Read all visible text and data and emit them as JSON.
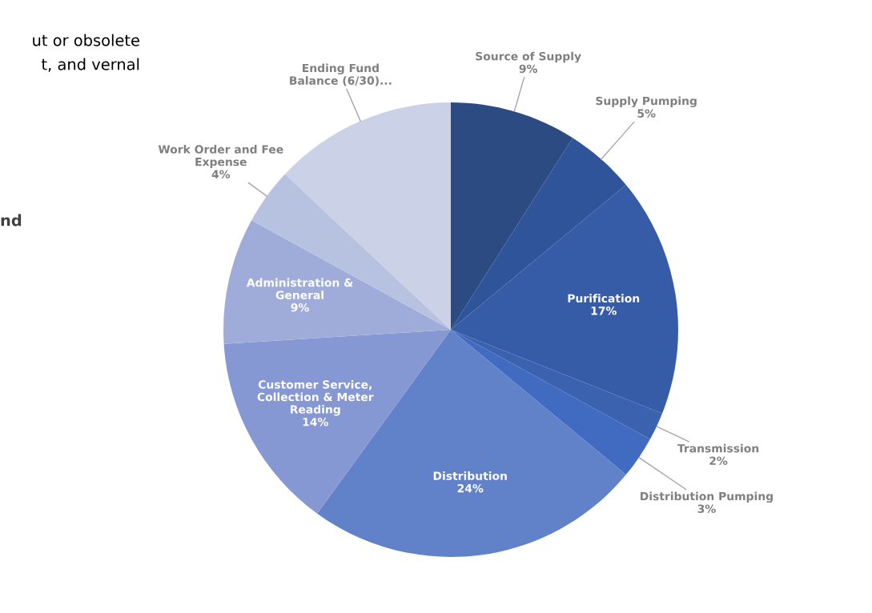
{
  "chart_data": {
    "type": "pie",
    "categories": [
      "Source of Supply",
      "Supply Pumping",
      "Purification",
      "Transmission",
      "Distribution Pumping",
      "Distribution",
      "Customer Service,\nCollection & Meter\nReading",
      "Administration &\nGeneral",
      "Work Order and Fee\nExpense",
      "Ending Fund\nBalance (6/30)..."
    ],
    "values": [
      9,
      5,
      17,
      2,
      3,
      24,
      14,
      9,
      4,
      13
    ],
    "value_labels": [
      "9%",
      "5%",
      "17%",
      "2%",
      "3%",
      "24%",
      "14%",
      "9%",
      "4%",
      null
    ],
    "colors": [
      "#2c4b82",
      "#30549a",
      "#375ca7",
      "#3a62ae",
      "#406bc1",
      "#6182c8",
      "#8598d3",
      "#9facda",
      "#b7c2e0",
      "#cbd1e6"
    ],
    "annotations": [
      "ut or obsolete",
      "t, and vernal",
      "nd"
    ],
    "legend": false
  }
}
